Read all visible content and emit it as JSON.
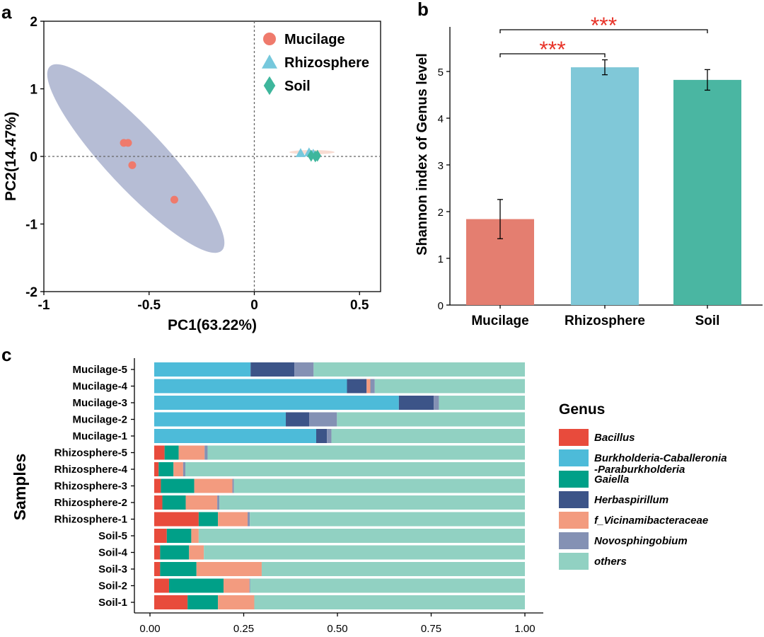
{
  "chart_data": [
    {
      "panel": "a",
      "type": "scatter",
      "xlabel": "PC1(63.22%)",
      "ylabel": "PC2(14.47%)",
      "xlim": [
        -1,
        0.6
      ],
      "ylim": [
        -2,
        2
      ],
      "xticks": [
        "-1",
        "-0.5",
        "0",
        "0.5"
      ],
      "yticks": [
        "2",
        "1",
        "0",
        "-1",
        "-2"
      ],
      "series": [
        {
          "name": "Mucilage",
          "color": "#EF7A6C",
          "marker": "circle",
          "points": [
            [
              -0.62,
              0.2
            ],
            [
              -0.6,
              0.2
            ],
            [
              -0.58,
              -0.13
            ],
            [
              -0.38,
              -0.64
            ]
          ]
        },
        {
          "name": "Rhizosphere",
          "color": "#76C8DC",
          "marker": "triangle",
          "points": [
            [
              0.22,
              0.05
            ],
            [
              0.26,
              0.06
            ],
            [
              0.28,
              0.04
            ]
          ]
        },
        {
          "name": "Soil",
          "color": "#3EB69C",
          "marker": "diamond",
          "points": [
            [
              0.27,
              0.01
            ],
            [
              0.29,
              0.0
            ],
            [
              0.3,
              0.01
            ]
          ]
        }
      ]
    },
    {
      "panel": "b",
      "type": "bar",
      "ylabel": "Shannon index of Genus level",
      "categories": [
        "Mucilage",
        "Rhizosphere",
        "Soil"
      ],
      "values": [
        1.84,
        5.09,
        4.82
      ],
      "errors": [
        0.42,
        0.16,
        0.22
      ],
      "colors": [
        "#E47E70",
        "#80C8D8",
        "#4AB6A2"
      ],
      "ylim": [
        0,
        6
      ],
      "yticks": [
        "0",
        "1",
        "2",
        "3",
        "4",
        "5"
      ],
      "significance": [
        {
          "from": "Mucilage",
          "to": "Rhizosphere",
          "label": "***"
        },
        {
          "from": "Mucilage",
          "to": "Soil",
          "label": "***"
        }
      ]
    },
    {
      "panel": "c",
      "type": "bar",
      "orientation": "horizontal-stacked",
      "ylabel": "Samples",
      "legend_title": "Genus",
      "xticks": [
        "0.00",
        "0.25",
        "0.50",
        "0.75",
        "1.00"
      ],
      "categories": [
        "Mucilage-5",
        "Mucilage-4",
        "Mucilage-3",
        "Mucilage-2",
        "Mucilage-1",
        "Rhizosphere-5",
        "Rhizosphere-4",
        "Rhizosphere-3",
        "Rhizosphere-2",
        "Rhizosphere-1",
        "Soil-5",
        "Soil-4",
        "Soil-3",
        "Soil-2",
        "Soil-1"
      ],
      "series": [
        {
          "name": "Bacillus",
          "color": "#E84B3C",
          "values": [
            0,
            0,
            0,
            0,
            0,
            0.028,
            0.012,
            0.018,
            0.022,
            0.12,
            0.034,
            0.016,
            0.016,
            0.04,
            0.09
          ]
        },
        {
          "name": "Burkholderia-Caballeronia",
          "name2": "-Paraburkholderia",
          "color": "#4DBBD9",
          "values": [
            0.26,
            0.52,
            0.66,
            0.355,
            0.437,
            0,
            0,
            0,
            0,
            0,
            0,
            0,
            0,
            0,
            0
          ]
        },
        {
          "name": "Gaiella",
          "color": "#00A088",
          "values": [
            0,
            0,
            0,
            0,
            0,
            0.038,
            0.04,
            0.09,
            0.063,
            0.052,
            0.066,
            0.078,
            0.098,
            0.147,
            0.082
          ]
        },
        {
          "name": "Herbaspirillum",
          "color": "#3C5488",
          "values": [
            0.118,
            0.053,
            0.094,
            0.063,
            0.029,
            0,
            0,
            0,
            0,
            0,
            0,
            0,
            0,
            0,
            0
          ]
        },
        {
          "name": "f_Vicinamibacteraceae",
          "color": "#F39B7F",
          "values": [
            0,
            0.01,
            0,
            0,
            0,
            0.07,
            0.026,
            0.103,
            0.085,
            0.08,
            0.02,
            0.04,
            0.176,
            0.07,
            0.098
          ]
        },
        {
          "name": "Novosphingobium",
          "color": "#8491B4",
          "values": [
            0.052,
            0.012,
            0.014,
            0.075,
            0.012,
            0.008,
            0.006,
            0.004,
            0.006,
            0.006,
            0,
            0,
            0,
            0.002,
            0
          ]
        },
        {
          "name": "others",
          "color": "#91D1C2",
          "values": [
            0.57,
            0.405,
            0.232,
            0.507,
            0.522,
            0.856,
            0.916,
            0.785,
            0.824,
            0.742,
            0.88,
            0.866,
            0.71,
            0.741,
            0.73
          ]
        }
      ]
    }
  ],
  "panels": {
    "a": "a",
    "b": "b",
    "c": "c"
  }
}
